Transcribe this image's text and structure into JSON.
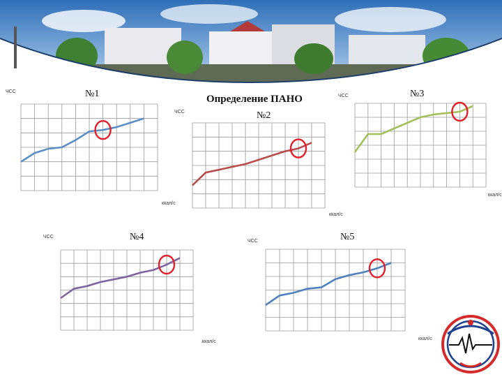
{
  "slide": {
    "title": "Определение ПАНО",
    "y_axis_label": "ЧСС",
    "x_axis_label": "ккал/с"
  },
  "colors": {
    "grid": "#9a9a9a",
    "marker": "#e0202a",
    "chart1": "#5b8ec4",
    "chart2": "#b84c4c",
    "chart3": "#a5c05a",
    "chart4": "#8064a2",
    "chart5": "#4f81bd"
  },
  "chart_data": [
    {
      "type": "line",
      "title": "№1",
      "ylabel": "ЧСС",
      "xlabel": "ккал/с",
      "xlim": [
        0,
        10
      ],
      "ylim": [
        0,
        6
      ],
      "grid": true,
      "x": [
        0,
        1,
        2,
        3,
        4,
        5,
        6,
        7,
        8,
        9
      ],
      "y": [
        2.0,
        2.6,
        2.9,
        3.0,
        3.5,
        4.1,
        4.2,
        4.4,
        4.7,
        5.0
      ],
      "highlight_index": 6
    },
    {
      "type": "line",
      "title": "№2",
      "ylabel": "ЧСС",
      "xlabel": "ккал/с",
      "xlim": [
        0,
        10
      ],
      "ylim": [
        0,
        6
      ],
      "grid": true,
      "x": [
        0,
        1,
        2,
        3,
        4,
        5,
        6,
        7,
        8,
        9
      ],
      "y": [
        1.6,
        2.5,
        2.7,
        2.9,
        3.1,
        3.4,
        3.7,
        4.0,
        4.2,
        4.6
      ],
      "highlight_index": 8
    },
    {
      "type": "line",
      "title": "№3",
      "ylabel": "ЧСС",
      "xlabel": "ккал/с",
      "xlim": [
        0,
        10
      ],
      "ylim": [
        0,
        6
      ],
      "grid": true,
      "x": [
        0,
        1,
        2,
        3,
        4,
        5,
        6,
        7,
        8,
        9
      ],
      "y": [
        2.5,
        3.8,
        3.8,
        4.2,
        4.6,
        5.0,
        5.2,
        5.3,
        5.4,
        5.8
      ],
      "highlight_index": 8
    },
    {
      "type": "line",
      "title": "№4",
      "ylabel": "ЧСС",
      "xlabel": "ккал/с",
      "xlim": [
        0,
        10
      ],
      "ylim": [
        0,
        6
      ],
      "grid": true,
      "x": [
        0,
        1,
        2,
        3,
        4,
        5,
        6,
        7,
        8,
        9
      ],
      "y": [
        2.4,
        3.1,
        3.3,
        3.6,
        3.8,
        4.0,
        4.3,
        4.5,
        4.9,
        5.4
      ],
      "highlight_index": 8
    },
    {
      "type": "line",
      "title": "№5",
      "ylabel": "ЧСС",
      "xlabel": "ккал/с",
      "xlim": [
        0,
        10
      ],
      "ylim": [
        0,
        6
      ],
      "grid": true,
      "x": [
        0,
        1,
        2,
        3,
        4,
        5,
        6,
        7,
        8,
        9
      ],
      "y": [
        1.9,
        2.6,
        2.8,
        3.1,
        3.2,
        3.8,
        4.1,
        4.3,
        4.6,
        5.0
      ],
      "highlight_index": 8
    }
  ]
}
